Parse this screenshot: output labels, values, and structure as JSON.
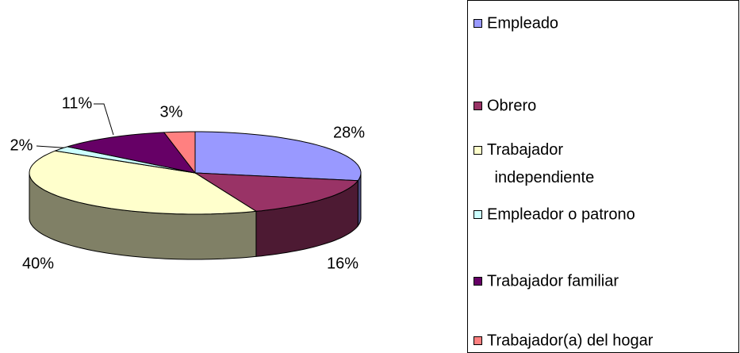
{
  "chart_data": {
    "type": "pie",
    "categories": [
      "Empleado",
      "Obrero",
      "Trabajador independiente",
      "Empleador o patrono",
      "Trabajador familiar",
      "Trabajador(a) del hogar"
    ],
    "values": [
      28,
      16,
      40,
      2,
      11,
      3
    ],
    "value_labels": [
      "28%",
      "16%",
      "40%",
      "2%",
      "11%",
      "3%"
    ],
    "colors": [
      "#9999ff",
      "#993366",
      "#ffffcc",
      "#ccffff",
      "#660066",
      "#ff8080"
    ],
    "legend": "right"
  }
}
